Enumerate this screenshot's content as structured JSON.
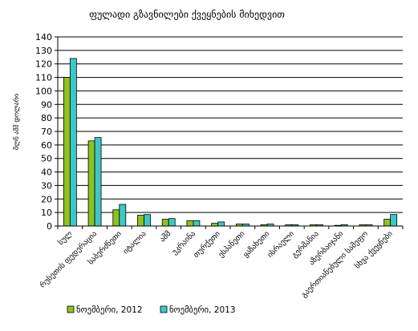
{
  "chart_data": {
    "type": "bar",
    "title": "ფულადი გზავნილები ქვეყნების მიხედვით",
    "ylabel": "მლნ აშშ დოლარი",
    "xlabel": "",
    "ylim": [
      0,
      140
    ],
    "yticks": [
      0,
      10,
      20,
      30,
      40,
      50,
      60,
      70,
      80,
      90,
      100,
      110,
      120,
      130,
      140
    ],
    "grid": true,
    "legend_position": "bottom",
    "categories": [
      "სულ",
      "რუსეთის ფედერაცია",
      "საბერძნეთი",
      "იტალია",
      "აშშ",
      "უკრაინა",
      "თურქეთი",
      "ესპანეთი",
      "ყაზახეთი",
      "ისრაელი",
      "გერმანია",
      "აზერბაიჯანი",
      "გაერთიანებული სამეფო",
      "სხვა ქვეყნები"
    ],
    "series": [
      {
        "name": "ნოემბერი, 2012",
        "color": "#8dc21f",
        "values": [
          110,
          63,
          12,
          8,
          5,
          4,
          2,
          1.5,
          1,
          1,
          1,
          0.5,
          1,
          5
        ]
      },
      {
        "name": "ნოემბერი, 2013",
        "color": "#3cc8c8",
        "values": [
          124,
          65.5,
          16,
          8.5,
          5.5,
          4,
          3,
          1.5,
          1.5,
          1,
          1,
          1,
          1,
          8.5
        ]
      }
    ]
  }
}
